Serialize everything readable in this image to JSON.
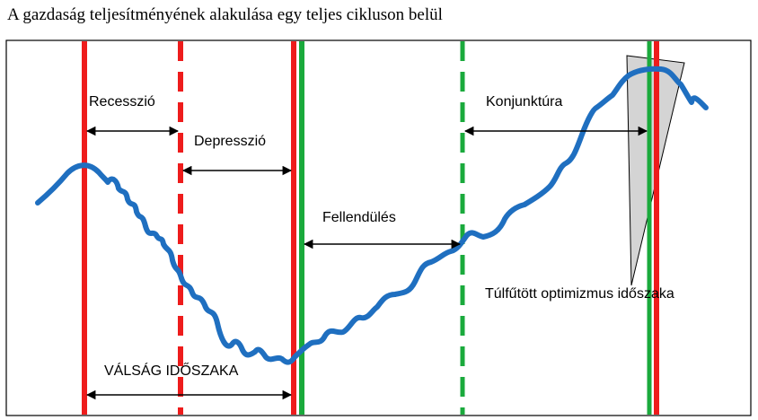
{
  "title": "A gazdaság teljesítményének alakulása egy teljes cikluson belül",
  "labels": {
    "recesszio": "Recesszió",
    "depresszio": "Depresszió",
    "fellendules": "Fellendülés",
    "konjunktura": "Konjunktúra",
    "tulfutott": "Túlfűtött optimizmus időszaka",
    "valsag": "VÁLSÁG IDŐSZAKA"
  },
  "colors": {
    "curve": "#1f6fc0",
    "red": "#ee1c1c",
    "green": "#1aaa3c",
    "wedge": "#d4d4d4"
  }
}
